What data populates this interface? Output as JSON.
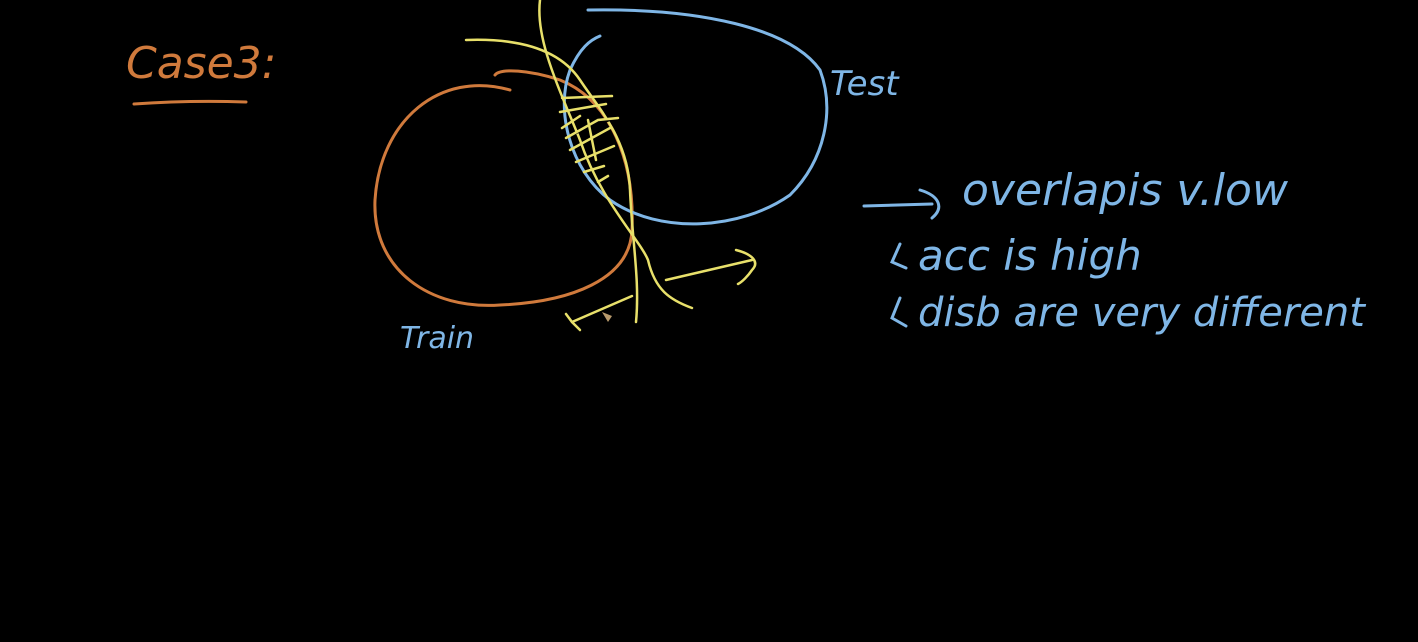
{
  "heading": {
    "text": "Case3:"
  },
  "labels": {
    "train": "Train",
    "test": "Test"
  },
  "notes": [
    {
      "text": "overlapis v.low"
    },
    {
      "text": "acc is high"
    },
    {
      "text": "disb are very different"
    }
  ],
  "colors": {
    "background": "#000000",
    "orange": "#d07a3c",
    "blue": "#7fb6e6",
    "yellow": "#e8e06a"
  }
}
